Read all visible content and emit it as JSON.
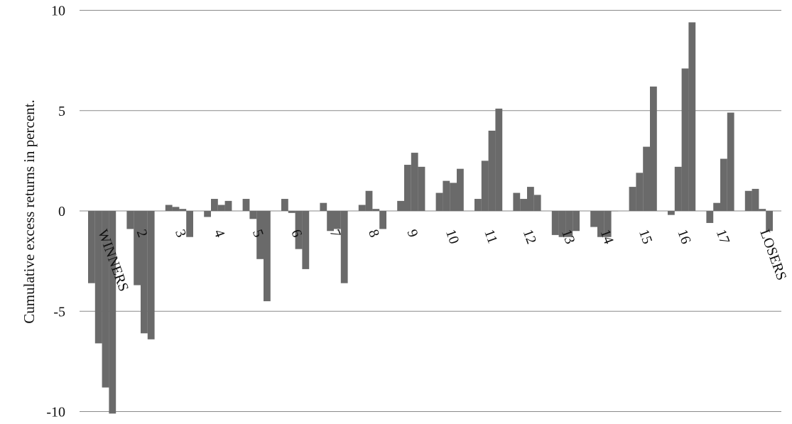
{
  "chart_data": {
    "type": "bar",
    "title": "",
    "ylabel": "Cumulative excess returns in percent.",
    "xlabel": "",
    "ylim": [
      -10,
      10
    ],
    "yticks": [
      10,
      5,
      0,
      -5,
      -10
    ],
    "ytick_labels": [
      "10",
      "5",
      "0",
      "-5",
      "-10"
    ],
    "grid": true,
    "bar_color": "#6a6a6a",
    "categories": [
      "WINNERS",
      "2",
      "3",
      "4",
      "5",
      "6",
      "7",
      "8",
      "9",
      "10",
      "11",
      "12",
      "13",
      "14",
      "15",
      "16",
      "17",
      "LOSERS"
    ],
    "groups": [
      {
        "label": "WINNERS",
        "values": [
          -3.6,
          -6.6,
          -8.8,
          -10.1
        ]
      },
      {
        "label": "2",
        "values": [
          -0.9,
          -3.7,
          -6.1,
          -6.4
        ]
      },
      {
        "label": "3",
        "values": [
          0.3,
          0.2,
          0.1,
          -1.3
        ]
      },
      {
        "label": "4",
        "values": [
          -0.3,
          0.6,
          0.3,
          0.5
        ]
      },
      {
        "label": "5",
        "values": [
          0.6,
          -0.4,
          -2.4,
          -4.5
        ]
      },
      {
        "label": "6",
        "values": [
          0.6,
          -0.1,
          -1.9,
          -2.9
        ]
      },
      {
        "label": "7",
        "values": [
          0.4,
          -1.0,
          -0.9,
          -3.6
        ]
      },
      {
        "label": "8",
        "values": [
          0.3,
          1.0,
          0.1,
          -0.9
        ]
      },
      {
        "label": "9",
        "values": [
          0.5,
          2.3,
          2.9,
          2.2
        ]
      },
      {
        "label": "10",
        "values": [
          0.9,
          1.5,
          1.4,
          2.1
        ]
      },
      {
        "label": "11",
        "values": [
          0.6,
          2.5,
          4.0,
          5.1
        ]
      },
      {
        "label": "12",
        "values": [
          0.9,
          0.6,
          1.2,
          0.8
        ]
      },
      {
        "label": "13",
        "values": [
          -1.2,
          -1.3,
          -1.3,
          -1.0
        ]
      },
      {
        "label": "14",
        "values": [
          -0.8,
          -1.3,
          -1.3,
          0.0
        ]
      },
      {
        "label": "15",
        "values": [
          1.2,
          1.9,
          3.2,
          6.2
        ]
      },
      {
        "label": "16",
        "values": [
          -0.2,
          2.2,
          7.1,
          9.4
        ]
      },
      {
        "label": "17",
        "values": [
          -0.6,
          0.4,
          2.6,
          4.9
        ]
      },
      {
        "label": "LOSERS",
        "values": [
          1.0,
          1.1,
          0.1,
          -1.0
        ]
      }
    ]
  }
}
